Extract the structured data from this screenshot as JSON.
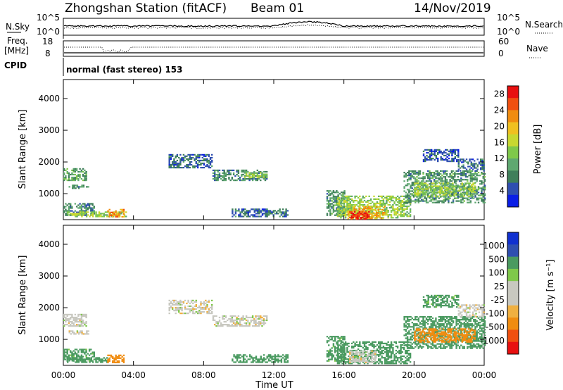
{
  "header": {
    "station": "Zhongshan Station (fitACF)",
    "beam": "Beam 01",
    "date": "14/Nov/2019"
  },
  "top_panels": {
    "nsky_label": "N.Sky",
    "nsky_ticks": [
      "10^5",
      "10^0"
    ],
    "nsearch_label": "N.Search",
    "nsearch_ticks": [
      "10^5",
      "10^0"
    ],
    "freq_label_1": "Freq.",
    "freq_label_2": "[MHz]",
    "freq_ticks": [
      "18",
      "8"
    ],
    "nave_label": "Nave",
    "nave_ticks": [
      "60",
      "0"
    ],
    "cpid_label": "CPID",
    "cpid_text": "normal (fast stereo) 153"
  },
  "colors": {
    "power_scale": [
      "#0a1ee6",
      "#2f4fb0",
      "#3f7f5a",
      "#5fa870",
      "#7fc84a",
      "#c8d830",
      "#f0c020",
      "#f08c10",
      "#f05010",
      "#e81010"
    ],
    "velocity_scale": [
      "#e81010",
      "#f05010",
      "#f08c10",
      "#f0b040",
      "#c8c8c0",
      "#c8c8c0",
      "#7fc84a",
      "#4a9a60",
      "#2f4fb0",
      "#1030d0"
    ]
  },
  "chart_data": [
    {
      "type": "heatmap",
      "title": "Power",
      "xlabel": "",
      "ylabel": "Slant Range [km]",
      "x_ticks": [
        "00:00",
        "04:00",
        "08:00",
        "12:00",
        "16:00",
        "20:00",
        "00:00"
      ],
      "y_ticks": [
        "1000",
        "2000",
        "3000",
        "4000"
      ],
      "ylim": [
        180,
        4600
      ],
      "colorbar_label": "Power [dB]",
      "colorbar_ticks": [
        "4",
        "8",
        "12",
        "16",
        "20",
        "24",
        "28"
      ],
      "colorbar_range": [
        0,
        30
      ],
      "echo_regions": [
        {
          "t0": 0.0,
          "t1": 1.3,
          "r0": 1400,
          "r1": 1800,
          "value": 10
        },
        {
          "t0": 0.3,
          "t1": 1.4,
          "r0": 1150,
          "r1": 1250,
          "value": 8
        },
        {
          "t0": 0.0,
          "t1": 1.8,
          "r0": 300,
          "r1": 700,
          "value": 8
        },
        {
          "t0": 0.2,
          "t1": 3.6,
          "r0": 260,
          "r1": 420,
          "value": 14
        },
        {
          "t0": 2.5,
          "t1": 3.4,
          "r0": 250,
          "r1": 480,
          "value": 22
        },
        {
          "t0": 6.0,
          "t1": 8.5,
          "r0": 1800,
          "r1": 2250,
          "value": 6
        },
        {
          "t0": 8.5,
          "t1": 11.6,
          "r0": 1400,
          "r1": 1750,
          "value": 8
        },
        {
          "t0": 10.3,
          "t1": 11.6,
          "r0": 1500,
          "r1": 1650,
          "value": 13
        },
        {
          "t0": 9.6,
          "t1": 12.8,
          "r0": 260,
          "r1": 500,
          "value": 6
        },
        {
          "t0": 15.0,
          "t1": 16.0,
          "r0": 300,
          "r1": 1100,
          "value": 9
        },
        {
          "t0": 15.6,
          "t1": 19.8,
          "r0": 220,
          "r1": 900,
          "value": 14
        },
        {
          "t0": 16.2,
          "t1": 18.3,
          "r0": 200,
          "r1": 600,
          "value": 20
        },
        {
          "t0": 16.3,
          "t1": 17.4,
          "r0": 180,
          "r1": 420,
          "value": 28
        },
        {
          "t0": 19.4,
          "t1": 24.0,
          "r0": 700,
          "r1": 1700,
          "value": 9
        },
        {
          "t0": 20.0,
          "t1": 23.5,
          "r0": 900,
          "r1": 1350,
          "value": 14
        },
        {
          "t0": 22.5,
          "t1": 24.0,
          "r0": 1700,
          "r1": 2100,
          "value": 6
        },
        {
          "t0": 20.5,
          "t1": 22.5,
          "r0": 2000,
          "r1": 2400,
          "value": 5
        }
      ]
    },
    {
      "type": "heatmap",
      "title": "Velocity",
      "xlabel": "Time UT",
      "ylabel": "Slant Range [km]",
      "x_ticks": [
        "00:00",
        "04:00",
        "08:00",
        "12:00",
        "16:00",
        "20:00",
        "00:00"
      ],
      "y_ticks": [
        "1000",
        "2000",
        "3000",
        "4000"
      ],
      "ylim": [
        180,
        4600
      ],
      "colorbar_label": "Velocity [m s⁻¹]",
      "colorbar_ticks": [
        "-1000",
        "-500",
        "-100",
        "-25",
        "25",
        "100",
        "500",
        "1000"
      ],
      "echo_regions": [
        {
          "t0": 0.0,
          "t1": 1.3,
          "r0": 1400,
          "r1": 1800,
          "value": 0
        },
        {
          "t0": 0.3,
          "t1": 1.4,
          "r0": 1150,
          "r1": 1250,
          "value": 0
        },
        {
          "t0": 0.0,
          "t1": 1.8,
          "r0": 300,
          "r1": 700,
          "value": 150
        },
        {
          "t0": 0.2,
          "t1": 2.6,
          "r0": 260,
          "r1": 420,
          "value": 300
        },
        {
          "t0": 2.5,
          "t1": 3.4,
          "r0": 250,
          "r1": 480,
          "value": -300
        },
        {
          "t0": 6.0,
          "t1": 8.5,
          "r0": 1800,
          "r1": 2250,
          "value": 0
        },
        {
          "t0": 8.5,
          "t1": 11.6,
          "r0": 1400,
          "r1": 1750,
          "value": 0
        },
        {
          "t0": 9.6,
          "t1": 12.8,
          "r0": 260,
          "r1": 500,
          "value": 300
        },
        {
          "t0": 15.0,
          "t1": 16.0,
          "r0": 300,
          "r1": 1100,
          "value": 150
        },
        {
          "t0": 15.6,
          "t1": 19.8,
          "r0": 220,
          "r1": 900,
          "value": 300
        },
        {
          "t0": 16.3,
          "t1": 17.8,
          "r0": 250,
          "r1": 650,
          "value": 0
        },
        {
          "t0": 19.4,
          "t1": 24.0,
          "r0": 700,
          "r1": 1700,
          "value": 300
        },
        {
          "t0": 20.0,
          "t1": 23.5,
          "r0": 900,
          "r1": 1350,
          "value": -300
        },
        {
          "t0": 22.5,
          "t1": 24.0,
          "r0": 1700,
          "r1": 2100,
          "value": 0
        },
        {
          "t0": 20.5,
          "t1": 22.5,
          "r0": 2000,
          "r1": 2400,
          "value": 150
        }
      ]
    }
  ]
}
